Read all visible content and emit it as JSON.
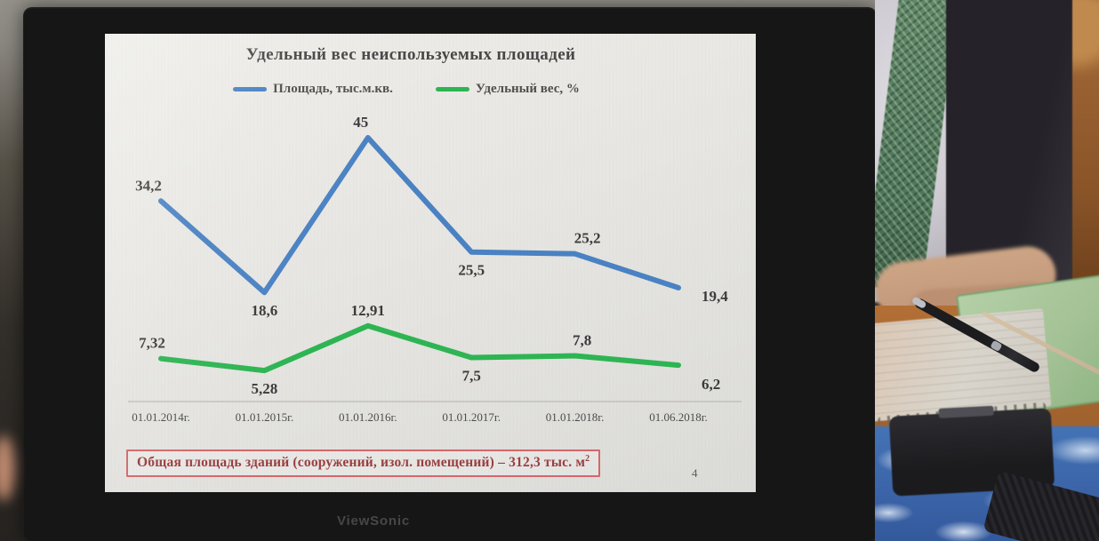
{
  "monitor": {
    "brand": "ViewSonic"
  },
  "slide": {
    "title": "Удельный вес неиспользуемых площадей",
    "footer": {
      "text": "Общая площадь зданий (сооружений, изол. помещений) – 312,3 тыс. м",
      "superscript": "2"
    },
    "page_number": "4"
  },
  "colors": {
    "line_blue": "#4a82c3",
    "line_green": "#2eb553",
    "footer_border": "#d4686c",
    "footer_text": "#9a3e40",
    "axis": "#c2c1be"
  },
  "chart_data": {
    "type": "line",
    "title": "Удельный вес неиспользуемых площадей",
    "categories": [
      "01.01.2014г.",
      "01.01.2015г.",
      "01.01.2016г.",
      "01.01.2017г.",
      "01.01.2018г.",
      "01.06.2018г."
    ],
    "series": [
      {
        "name": "Площадь, тыс.м.кв.",
        "color": "#4a82c3",
        "values": [
          34.2,
          18.6,
          45,
          25.5,
          25.2,
          19.4
        ],
        "labels": [
          "34,2",
          "18,6",
          "45",
          "25,5",
          "25,2",
          "19,4"
        ],
        "label_pos": [
          "above",
          "below",
          "above",
          "below",
          "above",
          "right"
        ],
        "label_dx": [
          -14,
          0,
          -8,
          0,
          14,
          0
        ],
        "label_dy": [
          0,
          0,
          0,
          0,
          0,
          2
        ]
      },
      {
        "name": "Удельный вес, %",
        "color": "#2eb553",
        "values": [
          7.32,
          5.28,
          12.91,
          7.5,
          7.8,
          6.2
        ],
        "labels": [
          "7,32",
          "5,28",
          "12,91",
          "7,5",
          "7,8",
          "6,2"
        ],
        "label_pos": [
          "above",
          "below",
          "above",
          "below",
          "above",
          "right"
        ],
        "label_dx": [
          -10,
          0,
          0,
          0,
          8,
          0
        ],
        "label_dy": [
          0,
          0,
          0,
          0,
          0,
          14
        ]
      }
    ],
    "xlabel": "",
    "ylabel": "",
    "ylim": [
      0,
      50
    ],
    "grid": false,
    "legend_position": "top"
  }
}
